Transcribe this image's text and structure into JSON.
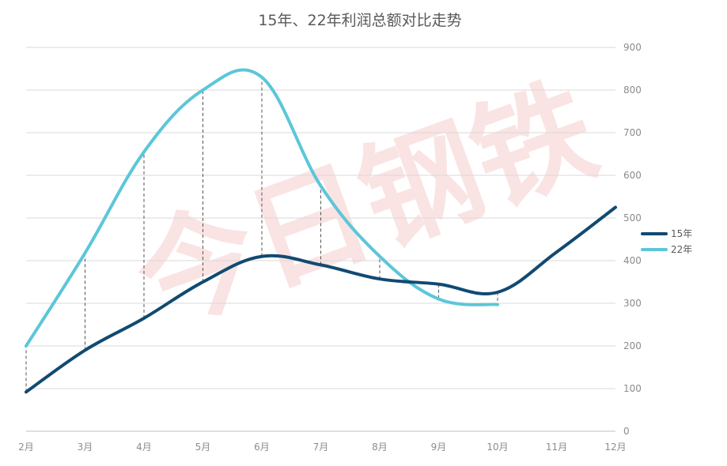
{
  "chart_data": {
    "type": "line",
    "title": "15年、22年利润总额对比走势",
    "categories": [
      "2月",
      "3月",
      "4月",
      "5月",
      "6月",
      "7月",
      "8月",
      "9月",
      "10月",
      "11月",
      "12月"
    ],
    "y_ticks": [
      "0",
      "100",
      "200",
      "300",
      "400",
      "500",
      "600",
      "700",
      "800",
      "900"
    ],
    "ylim": [
      0,
      900
    ],
    "y_axis_side": "right",
    "grid": true,
    "legend_position": "right",
    "series": [
      {
        "name": "15年",
        "color": "#114a72",
        "values": [
          92,
          190,
          265,
          350,
          410,
          390,
          357,
          345,
          326,
          420,
          525
        ]
      },
      {
        "name": "22年",
        "color": "#5cc6d9",
        "values": [
          200,
          418,
          655,
          800,
          830,
          575,
          410,
          310,
          297,
          null,
          null
        ]
      }
    ],
    "drop_lines": true,
    "watermark": "今日钢铁"
  }
}
